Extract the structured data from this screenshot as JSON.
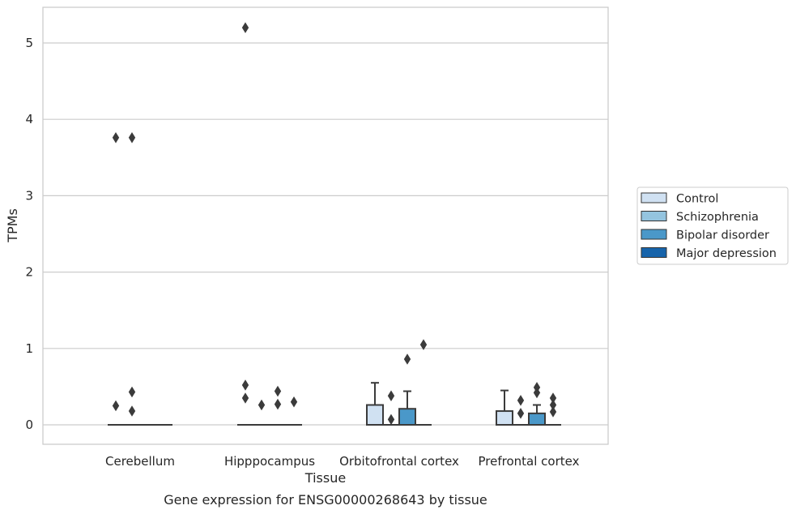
{
  "chart_data": {
    "type": "box",
    "title": "",
    "caption": "Gene expression for ENSG00000268643 by tissue",
    "xlabel": "Tissue",
    "ylabel": "TPMs",
    "categories": [
      "Cerebellum",
      "Hipppocampus",
      "Orbitofrontal cortex",
      "Prefrontal cortex"
    ],
    "yticks": [
      0,
      1,
      2,
      3,
      4,
      5
    ],
    "ylim": [
      -0.25,
      5.47
    ],
    "grid": "horizontal",
    "legend_position": "right",
    "series": [
      {
        "name": "Control",
        "color": "#d0e1f2",
        "boxes": [
          {
            "category": "Cerebellum",
            "q1": 0,
            "median": 0,
            "q3": 0,
            "whisker_low": 0,
            "whisker_high": 0,
            "outliers": [
              0.25,
              3.76
            ]
          },
          {
            "category": "Hipppocampus",
            "q1": 0,
            "median": 0,
            "q3": 0,
            "whisker_low": 0,
            "whisker_high": 0,
            "outliers": [
              0.35,
              0.52,
              5.2
            ]
          },
          {
            "category": "Orbitofrontal cortex",
            "q1": 0,
            "median": 0,
            "q3": 0.26,
            "whisker_low": 0,
            "whisker_high": 0.55,
            "outliers": []
          },
          {
            "category": "Prefrontal cortex",
            "q1": 0,
            "median": 0,
            "q3": 0.18,
            "whisker_low": 0,
            "whisker_high": 0.45,
            "outliers": []
          }
        ]
      },
      {
        "name": "Schizophrenia",
        "color": "#94c4df",
        "boxes": [
          {
            "category": "Cerebellum",
            "q1": 0,
            "median": 0,
            "q3": 0,
            "whisker_low": 0,
            "whisker_high": 0,
            "outliers": [
              0.18,
              0.43,
              3.76
            ]
          },
          {
            "category": "Hipppocampus",
            "q1": 0,
            "median": 0,
            "q3": 0,
            "whisker_low": 0,
            "whisker_high": 0,
            "outliers": [
              0.26
            ]
          },
          {
            "category": "Orbitofrontal cortex",
            "q1": 0,
            "median": 0,
            "q3": 0,
            "whisker_low": 0,
            "whisker_high": 0,
            "outliers": [
              0.07,
              0.38
            ]
          },
          {
            "category": "Prefrontal cortex",
            "q1": 0,
            "median": 0,
            "q3": 0,
            "whisker_low": 0,
            "whisker_high": 0,
            "outliers": [
              0.15,
              0.32
            ]
          }
        ]
      },
      {
        "name": "Bipolar disorder",
        "color": "#4a98c9",
        "boxes": [
          {
            "category": "Cerebellum",
            "q1": 0,
            "median": 0,
            "q3": 0,
            "whisker_low": 0,
            "whisker_high": 0,
            "outliers": []
          },
          {
            "category": "Hipppocampus",
            "q1": 0,
            "median": 0,
            "q3": 0,
            "whisker_low": 0,
            "whisker_high": 0,
            "outliers": [
              0.27,
              0.44
            ]
          },
          {
            "category": "Orbitofrontal cortex",
            "q1": 0,
            "median": 0,
            "q3": 0.21,
            "whisker_low": 0,
            "whisker_high": 0.44,
            "outliers": [
              0.86
            ]
          },
          {
            "category": "Prefrontal cortex",
            "q1": 0,
            "median": 0,
            "q3": 0.15,
            "whisker_low": 0,
            "whisker_high": 0.26,
            "outliers": [
              0.42,
              0.49
            ]
          }
        ]
      },
      {
        "name": "Major depression",
        "color": "#1764ab",
        "boxes": [
          {
            "category": "Cerebellum",
            "q1": 0,
            "median": 0,
            "q3": 0,
            "whisker_low": 0,
            "whisker_high": 0,
            "outliers": []
          },
          {
            "category": "Hipppocampus",
            "q1": 0,
            "median": 0,
            "q3": 0,
            "whisker_low": 0,
            "whisker_high": 0,
            "outliers": [
              0.3
            ]
          },
          {
            "category": "Orbitofrontal cortex",
            "q1": 0,
            "median": 0,
            "q3": 0,
            "whisker_low": 0,
            "whisker_high": 0,
            "outliers": [
              1.05
            ]
          },
          {
            "category": "Prefrontal cortex",
            "q1": 0,
            "median": 0,
            "q3": 0,
            "whisker_low": 0,
            "whisker_high": 0,
            "outliers": [
              0.17,
              0.26,
              0.35
            ]
          }
        ]
      }
    ]
  }
}
